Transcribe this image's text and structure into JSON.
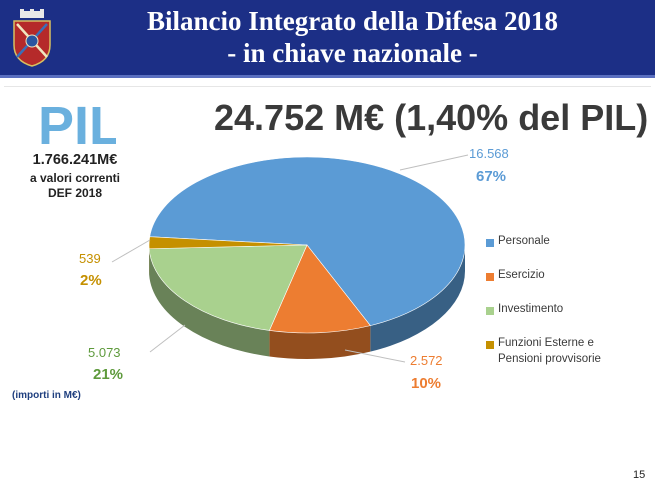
{
  "header": {
    "title_line1": "Bilancio Integrato della Difesa 2018",
    "title_line2": "- in chiave nazionale -"
  },
  "headline": "24.752 M€ (1,40% del PIL)",
  "pil": {
    "logo_text": "PIL",
    "value": "1.766.241M€",
    "note_line1": "a valori correnti",
    "note_line2": "DEF 2018"
  },
  "units_note": "(importi in M€)",
  "page_number": "15",
  "colors": {
    "header": "#1c2f86",
    "personale": "#5b9bd5",
    "esercizio": "#ed7d31",
    "investimento": "#a9d18e",
    "funzioni": "#c59000"
  },
  "chart_data": {
    "type": "pie",
    "style": "3d",
    "legend_position": "right",
    "slices": [
      {
        "label": "Personale",
        "value": 16568,
        "value_label": "16.568",
        "percent_label": "67%",
        "color": "#5b9bd5"
      },
      {
        "label": "Esercizio",
        "value": 2572,
        "value_label": "2.572",
        "percent_label": "10%",
        "color": "#ed7d31"
      },
      {
        "label": "Investimento",
        "value": 5073,
        "value_label": "5.073",
        "percent_label": "21%",
        "color": "#a9d18e"
      },
      {
        "label": "Funzioni Esterne e Pensioni provvisorie",
        "value": 539,
        "value_label": "539",
        "percent_label": "2%",
        "color": "#c59000"
      }
    ],
    "legend": [
      "Personale",
      "Esercizio",
      "Investimento",
      "Funzioni Esterne e",
      "Pensioni provvisorie"
    ]
  }
}
